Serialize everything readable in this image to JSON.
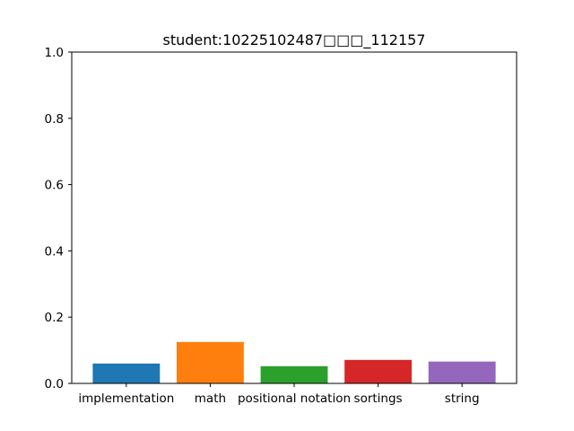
{
  "chart_data": {
    "type": "bar",
    "title": "student:10225102487□□□_112157",
    "xlabel": "",
    "ylabel": "",
    "categories": [
      "implementation",
      "math",
      "positional notation",
      "sortings",
      "string"
    ],
    "values": [
      0.06,
      0.125,
      0.052,
      0.071,
      0.066
    ],
    "colors": [
      "#1f77b4",
      "#ff7f0e",
      "#2ca02c",
      "#d62728",
      "#9467bd"
    ],
    "ylim": [
      0,
      1.0
    ],
    "yticks": [
      0.0,
      0.2,
      0.4,
      0.6,
      0.8,
      1.0
    ],
    "ytick_labels": [
      "0.0",
      "0.2",
      "0.4",
      "0.6",
      "0.8",
      "1.0"
    ],
    "grid": false,
    "legend": "none"
  }
}
